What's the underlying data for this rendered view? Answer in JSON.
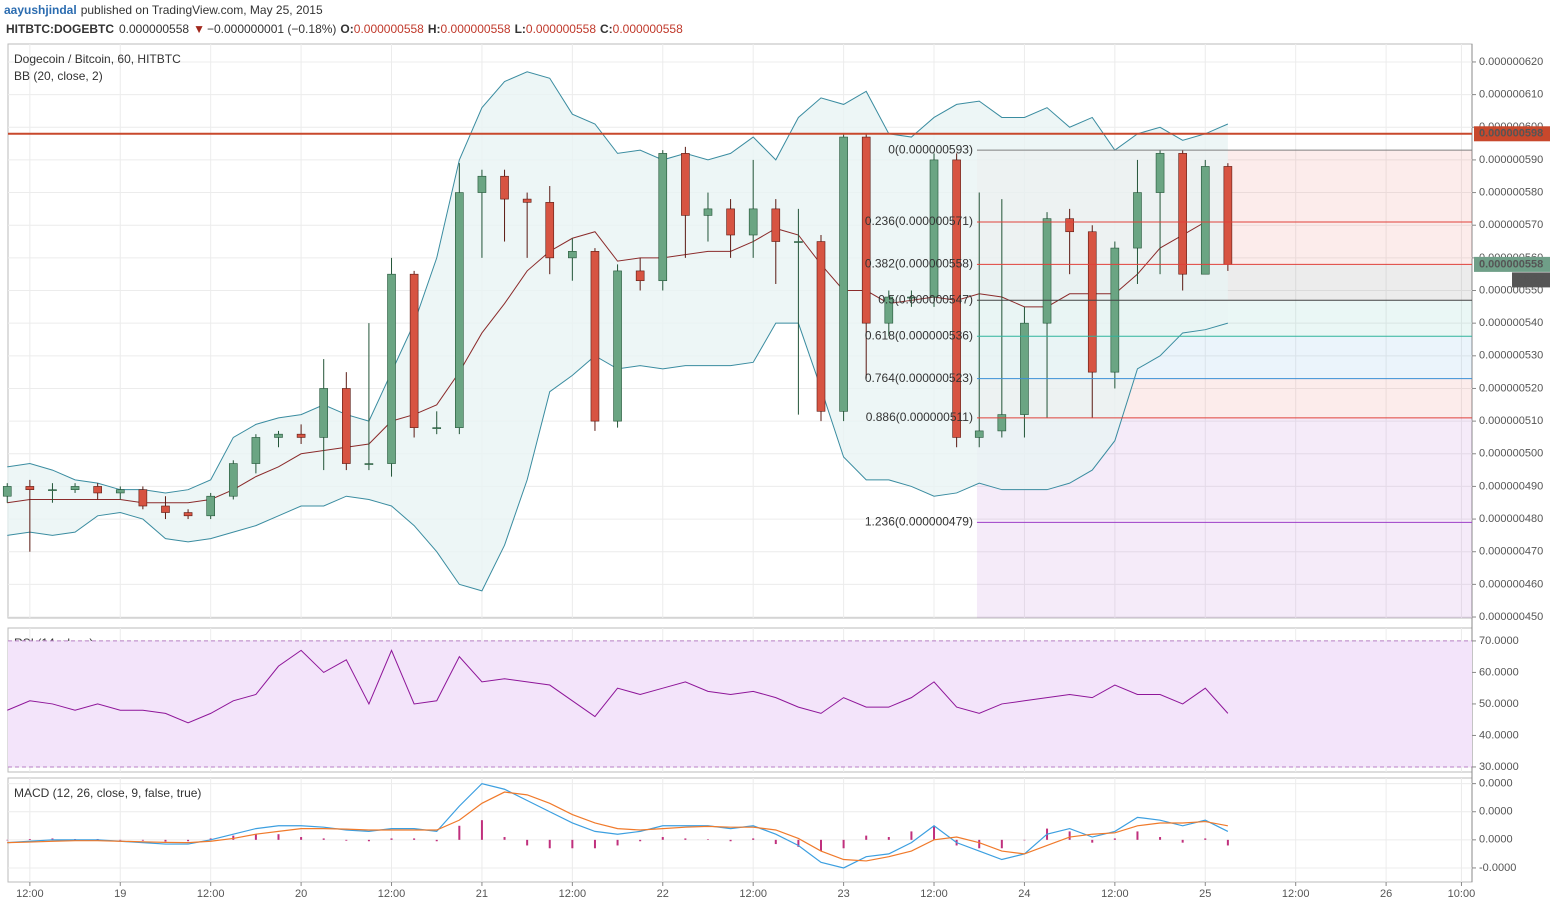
{
  "header": {
    "author": "aayushjindal",
    "published": "published on TradingView.com, May 25, 2015",
    "symbol": "HITBTC:DOGEBTC",
    "last": "0.000000558",
    "arrow": "▼",
    "change": "−0.000000001 (−0.18%)",
    "ohlc": [
      {
        "key": "O:",
        "value": "0.000000558"
      },
      {
        "key": "H:",
        "value": "0.000000558"
      },
      {
        "key": "L:",
        "value": "0.000000558"
      },
      {
        "key": "C:",
        "value": "0.000000558"
      }
    ]
  },
  "chart_data": [
    {
      "type": "candlestick",
      "title": "Dogecoin / Bitcoin, 60, HITBTC",
      "x": [
        9,
        12,
        15,
        18,
        21,
        24,
        27,
        30,
        33,
        36,
        39,
        42,
        45,
        48,
        51,
        54,
        57,
        60,
        63,
        66,
        69,
        72,
        75,
        78,
        81,
        84,
        87,
        90,
        93,
        96,
        99,
        102,
        105,
        108,
        111,
        114,
        117,
        120,
        123,
        126,
        129,
        132,
        135,
        138,
        141,
        144,
        147,
        150,
        153,
        156,
        159,
        162,
        165,
        168,
        171
      ],
      "open": [
        4.87e-07,
        4.9e-07,
        4.89e-07,
        4.89e-07,
        4.9e-07,
        4.88e-07,
        4.89e-07,
        4.84e-07,
        4.82e-07,
        4.81e-07,
        4.87e-07,
        4.97e-07,
        5.05e-07,
        5.06e-07,
        5.05e-07,
        5.2e-07,
        4.97e-07,
        4.97e-07,
        5.55e-07,
        5.08e-07,
        5.08e-07,
        5.8e-07,
        5.85e-07,
        5.78e-07,
        5.77e-07,
        5.6e-07,
        5.62e-07,
        5.1e-07,
        5.56e-07,
        5.53e-07,
        5.92e-07,
        5.73e-07,
        5.75e-07,
        5.67e-07,
        5.75e-07,
        5.65e-07,
        5.65e-07,
        5.13e-07,
        5.97e-07,
        5.4e-07,
        5.48e-07,
        5.48e-07,
        5.9e-07,
        5.05e-07,
        5.07e-07,
        5.12e-07,
        5.4e-07,
        5.72e-07,
        5.68e-07,
        5.25e-07,
        5.63e-07,
        5.8e-07,
        5.92e-07,
        5.55e-07,
        5.88e-07
      ],
      "high": [
        4.91e-07,
        4.92e-07,
        4.91e-07,
        4.91e-07,
        4.91e-07,
        4.9e-07,
        4.9e-07,
        4.87e-07,
        4.83e-07,
        4.88e-07,
        4.98e-07,
        5.06e-07,
        5.07e-07,
        5.09e-07,
        5.29e-07,
        5.25e-07,
        5.4e-07,
        5.6e-07,
        5.56e-07,
        5.13e-07,
        5.89e-07,
        5.87e-07,
        5.87e-07,
        5.8e-07,
        5.82e-07,
        5.66e-07,
        5.63e-07,
        5.58e-07,
        5.6e-07,
        5.93e-07,
        5.94e-07,
        5.8e-07,
        5.78e-07,
        5.9e-07,
        5.78e-07,
        5.75e-07,
        5.67e-07,
        5.98e-07,
        5.98e-07,
        5.5e-07,
        5.5e-07,
        5.92e-07,
        5.92e-07,
        5.8e-07,
        5.78e-07,
        5.45e-07,
        5.74e-07,
        5.75e-07,
        5.7e-07,
        5.65e-07,
        5.9e-07,
        5.93e-07,
        5.93e-07,
        5.9e-07,
        5.89e-07
      ],
      "low": [
        4.85e-07,
        4.7e-07,
        4.85e-07,
        4.88e-07,
        4.86e-07,
        4.86e-07,
        4.83e-07,
        4.8e-07,
        4.8e-07,
        4.8e-07,
        4.86e-07,
        4.94e-07,
        5.02e-07,
        5.03e-07,
        4.95e-07,
        4.95e-07,
        4.95e-07,
        4.93e-07,
        5.05e-07,
        5.06e-07,
        5.06e-07,
        5.6e-07,
        5.65e-07,
        5.6e-07,
        5.55e-07,
        5.53e-07,
        5.07e-07,
        5.08e-07,
        5.5e-07,
        5.5e-07,
        5.6e-07,
        5.65e-07,
        5.6e-07,
        5.6e-07,
        5.52e-07,
        5.12e-07,
        5.1e-07,
        5.1e-07,
        5.23e-07,
        5.36e-07,
        5.45e-07,
        5.45e-07,
        5.02e-07,
        5.02e-07,
        5.05e-07,
        5.05e-07,
        5.11e-07,
        5.55e-07,
        5.11e-07,
        5.2e-07,
        5.52e-07,
        5.55e-07,
        5.5e-07,
        5.55e-07,
        5.56e-07
      ],
      "close": [
        4.9e-07,
        4.89e-07,
        4.89e-07,
        4.9e-07,
        4.88e-07,
        4.89e-07,
        4.84e-07,
        4.82e-07,
        4.81e-07,
        4.87e-07,
        4.97e-07,
        5.05e-07,
        5.06e-07,
        5.05e-07,
        5.2e-07,
        4.97e-07,
        4.97e-07,
        5.55e-07,
        5.08e-07,
        5.08e-07,
        5.8e-07,
        5.85e-07,
        5.78e-07,
        5.77e-07,
        5.6e-07,
        5.62e-07,
        5.1e-07,
        5.56e-07,
        5.53e-07,
        5.92e-07,
        5.73e-07,
        5.75e-07,
        5.67e-07,
        5.75e-07,
        5.65e-07,
        5.65e-07,
        5.13e-07,
        5.97e-07,
        5.4e-07,
        5.48e-07,
        5.48e-07,
        5.9e-07,
        5.05e-07,
        5.07e-07,
        5.12e-07,
        5.4e-07,
        5.72e-07,
        5.68e-07,
        5.25e-07,
        5.63e-07,
        5.8e-07,
        5.92e-07,
        5.55e-07,
        5.88e-07,
        5.58e-07
      ],
      "up_color": "#6ba583",
      "up_border": "#225437",
      "down_color": "#d75442",
      "down_border": "#5b1a13",
      "xlim": [
        9.1,
        203.4
      ],
      "xticks": [
        {
          "value": 12,
          "label": "12:00"
        },
        {
          "value": 24,
          "label": "19"
        },
        {
          "value": 36,
          "label": "12:00"
        },
        {
          "value": 48,
          "label": "20"
        },
        {
          "value": 60,
          "label": "12:00"
        },
        {
          "value": 72,
          "label": "21"
        },
        {
          "value": 84,
          "label": "12:00"
        },
        {
          "value": 96,
          "label": "22"
        },
        {
          "value": 108,
          "label": "12:00"
        },
        {
          "value": 120,
          "label": "23"
        },
        {
          "value": 132,
          "label": "12:00"
        },
        {
          "value": 144,
          "label": "24"
        },
        {
          "value": 156,
          "label": "12:00"
        },
        {
          "value": 168,
          "label": "25"
        },
        {
          "value": 180,
          "label": "12:00"
        },
        {
          "value": 192,
          "label": "26"
        },
        {
          "value": 202,
          "label": "10:00"
        }
      ],
      "ylim": [
        4.497e-07,
        6.255e-07
      ],
      "yticks": [
        {
          "value": 4.5e-07,
          "label": "0.000000450"
        },
        {
          "value": 4.6e-07,
          "label": "0.000000460"
        },
        {
          "value": 4.7e-07,
          "label": "0.000000470"
        },
        {
          "value": 4.8e-07,
          "label": "0.000000480"
        },
        {
          "value": 4.9e-07,
          "label": "0.000000490"
        },
        {
          "value": 5e-07,
          "label": "0.000000500"
        },
        {
          "value": 5.1e-07,
          "label": "0.000000510"
        },
        {
          "value": 5.2e-07,
          "label": "0.000000520"
        },
        {
          "value": 5.3e-07,
          "label": "0.000000530"
        },
        {
          "value": 5.4e-07,
          "label": "0.000000540"
        },
        {
          "value": 5.5e-07,
          "label": "0.000000550"
        },
        {
          "value": 5.6e-07,
          "label": "0.000000560"
        },
        {
          "value": 5.7e-07,
          "label": "0.000000570"
        },
        {
          "value": 5.8e-07,
          "label": "0.000000580"
        },
        {
          "value": 5.9e-07,
          "label": "0.000000590"
        },
        {
          "value": 6e-07,
          "label": "0.000000600"
        },
        {
          "value": 6.1e-07,
          "label": "0.000000610"
        },
        {
          "value": 6.2e-07,
          "label": "0.000000620"
        }
      ],
      "grid": true,
      "bollinger": {
        "name": "BB (20, close, 2)",
        "color": "#3a8ca0",
        "basis_color": "#8b2b2b",
        "fill": "#e8f4f4",
        "upper": [
          4.96e-07,
          4.97e-07,
          4.95e-07,
          4.92e-07,
          4.91e-07,
          4.89e-07,
          4.89e-07,
          4.88e-07,
          4.89e-07,
          4.92e-07,
          5.05e-07,
          5.09e-07,
          5.11e-07,
          5.12e-07,
          5.15e-07,
          5.12e-07,
          5.1e-07,
          5.25e-07,
          5.4e-07,
          5.6e-07,
          5.9e-07,
          6.06e-07,
          6.14e-07,
          6.17e-07,
          6.15e-07,
          6.04e-07,
          6.01e-07,
          5.92e-07,
          5.93e-07,
          5.9e-07,
          5.92e-07,
          5.9e-07,
          5.92e-07,
          5.97e-07,
          5.9e-07,
          6.03e-07,
          6.09e-07,
          6.07e-07,
          6.11e-07,
          5.98e-07,
          5.97e-07,
          6.03e-07,
          6.07e-07,
          6.08e-07,
          6.03e-07,
          6.03e-07,
          6.06e-07,
          6e-07,
          6.03e-07,
          5.93e-07,
          5.98e-07,
          6e-07,
          5.96e-07,
          5.98e-07,
          6.01e-07
        ],
        "basis": [
          4.85e-07,
          4.86e-07,
          4.86e-07,
          4.86e-07,
          4.86e-07,
          4.86e-07,
          4.85e-07,
          4.85e-07,
          4.85e-07,
          4.86e-07,
          4.89e-07,
          4.93e-07,
          4.96e-07,
          5e-07,
          5.01e-07,
          5.02e-07,
          5.03e-07,
          5.1e-07,
          5.12e-07,
          5.15e-07,
          5.25e-07,
          5.37e-07,
          5.46e-07,
          5.56e-07,
          5.62e-07,
          5.66e-07,
          5.68e-07,
          5.59e-07,
          5.6e-07,
          5.6e-07,
          5.61e-07,
          5.62e-07,
          5.62e-07,
          5.65e-07,
          5.69e-07,
          5.67e-07,
          5.58e-07,
          5.5e-07,
          5.5e-07,
          5.46e-07,
          5.47e-07,
          5.48e-07,
          5.47e-07,
          5.49e-07,
          5.48e-07,
          5.45e-07,
          5.45e-07,
          5.49e-07,
          5.49e-07,
          5.49e-07,
          5.55e-07,
          5.63e-07,
          5.67e-07,
          5.71e-07,
          5.71e-07
        ],
        "lower": [
          4.75e-07,
          4.76e-07,
          4.75e-07,
          4.76e-07,
          4.81e-07,
          4.82e-07,
          4.8e-07,
          4.74e-07,
          4.73e-07,
          4.74e-07,
          4.76e-07,
          4.78e-07,
          4.81e-07,
          4.84e-07,
          4.84e-07,
          4.87e-07,
          4.86e-07,
          4.84e-07,
          4.78e-07,
          4.7e-07,
          4.6e-07,
          4.58e-07,
          4.72e-07,
          4.92e-07,
          5.19e-07,
          5.24e-07,
          5.3e-07,
          5.26e-07,
          5.27e-07,
          5.26e-07,
          5.27e-07,
          5.27e-07,
          5.27e-07,
          5.28e-07,
          5.4e-07,
          5.4e-07,
          5.2e-07,
          4.99e-07,
          4.92e-07,
          4.92e-07,
          4.9e-07,
          4.87e-07,
          4.88e-07,
          4.91e-07,
          4.89e-07,
          4.89e-07,
          4.89e-07,
          4.91e-07,
          4.95e-07,
          5.04e-07,
          5.26e-07,
          5.3e-07,
          5.37e-07,
          5.38e-07,
          5.4e-07
        ]
      },
      "price_line": {
        "value": 5.98e-07,
        "label": "0.000000598",
        "color": "#c8482c"
      },
      "last_price": {
        "value": 5.58e-07,
        "label": "0.000000558",
        "time": "06:27",
        "color": "#6f9f88",
        "time_color": "#555555"
      },
      "fibonacci": {
        "x_start": 137.7,
        "levels": [
          {
            "label": "0(0.000000593)",
            "value": 5.93e-07,
            "color": "#808080"
          },
          {
            "label": "0.236(0.000000571)",
            "value": 5.71e-07,
            "color": "#e0413a"
          },
          {
            "label": "0.382(0.000000558)",
            "value": 5.58e-07,
            "color": "#e0413a"
          },
          {
            "label": "0.5(0.000000547)",
            "value": 5.47e-07,
            "color": "#444444"
          },
          {
            "label": "0.618(0.000000536)",
            "value": 5.36e-07,
            "color": "#2fb39b"
          },
          {
            "label": "0.764(0.000000523)",
            "value": 5.23e-07,
            "color": "#3a8fd6"
          },
          {
            "label": "0.886(0.000000511)",
            "value": 5.11e-07,
            "color": "#e0413a"
          },
          {
            "label": "1.236(0.000000479)",
            "value": 4.79e-07,
            "color": "#9c3fc8"
          }
        ]
      }
    },
    {
      "type": "line",
      "title": "RSI (14, close)",
      "color": "#8e1599",
      "band": [
        30,
        70
      ],
      "band_color": "#f3e4fa",
      "values": [
        48,
        51,
        50,
        48,
        50,
        48,
        48,
        47,
        44,
        47,
        51,
        53,
        62,
        67,
        60,
        64,
        50,
        67,
        50,
        51,
        65,
        57,
        58,
        57,
        56,
        51,
        46,
        55,
        53,
        55,
        57,
        54,
        53,
        54,
        52,
        49,
        47,
        52,
        49,
        49,
        52,
        57,
        49,
        47,
        50,
        51,
        52,
        53,
        52,
        56,
        53,
        53,
        50,
        55,
        47
      ],
      "ylim": [
        28.4,
        74.1
      ],
      "yticks": [
        {
          "value": 30,
          "label": "30.0000"
        },
        {
          "value": 40,
          "label": "40.0000"
        },
        {
          "value": 50,
          "label": "50.0000"
        },
        {
          "value": 60,
          "label": "60.0000"
        },
        {
          "value": 70,
          "label": "70.0000"
        }
      ]
    },
    {
      "type": "macd",
      "title": "MACD (12, 26, close, 9, false, true)",
      "macd_color": "#3c9fe0",
      "signal_color": "#f07a2b",
      "histogram_color": "#c0307d",
      "macd": [
        -1e-09,
        -5e-10,
        0,
        0,
        0,
        -5e-10,
        -1e-09,
        -1.5e-09,
        -1.5e-09,
        0,
        2e-09,
        4e-09,
        5e-09,
        5e-09,
        4.5e-09,
        3.5e-09,
        3e-09,
        4e-09,
        4e-09,
        3e-09,
        1.2e-08,
        2e-08,
        1.8e-08,
        1.4e-08,
        1e-08,
        6e-09,
        3e-09,
        2e-09,
        3e-09,
        5e-09,
        5e-09,
        5e-09,
        4e-09,
        5e-09,
        2e-09,
        -2e-09,
        -8e-09,
        -1e-08,
        -6e-09,
        -5e-09,
        -1e-09,
        5e-09,
        -1e-09,
        -4e-09,
        -7e-09,
        -5e-09,
        2e-09,
        4e-09,
        1e-09,
        3e-09,
        8e-09,
        7e-09,
        5e-09,
        7e-09,
        3e-09
      ],
      "signal": [
        -1e-09,
        -8e-10,
        -5e-10,
        -3e-10,
        -3e-10,
        -5e-10,
        -7e-10,
        -9e-10,
        -1e-09,
        -5e-10,
        5e-10,
        2e-09,
        3e-09,
        4e-09,
        4e-09,
        3.8e-09,
        3.5e-09,
        3.5e-09,
        3.5e-09,
        3.5e-09,
        7e-09,
        1.3e-08,
        1.7e-08,
        1.6e-08,
        1.3e-08,
        9e-09,
        6e-09,
        4e-09,
        3.5e-09,
        4e-09,
        4.5e-09,
        4.8e-09,
        4.5e-09,
        4.5e-09,
        3.5e-09,
        5e-10,
        -4e-09,
        -7e-09,
        -7.5e-09,
        -6e-09,
        -4e-09,
        0,
        1e-09,
        -1e-09,
        -4e-09,
        -5e-09,
        -2e-09,
        1e-09,
        2e-09,
        2.5e-09,
        5e-09,
        6e-09,
        6e-09,
        6.5e-09,
        5e-09
      ],
      "histogram": [
        0,
        3e-10,
        5e-10,
        3e-10,
        3e-10,
        0,
        -3e-10,
        -6e-10,
        -5e-10,
        5e-10,
        1.5e-09,
        2e-09,
        2e-09,
        1e-09,
        5e-10,
        -3e-10,
        -5e-10,
        5e-10,
        5e-10,
        -5e-10,
        5e-09,
        7e-09,
        1e-09,
        -2e-09,
        -3e-09,
        -3e-09,
        -3e-09,
        -2e-09,
        -5e-10,
        1e-09,
        5e-10,
        2e-10,
        -5e-10,
        5e-10,
        -1.5e-09,
        -2.5e-09,
        -4e-09,
        -3e-09,
        1.5e-09,
        1e-09,
        3e-09,
        5e-09,
        -2e-09,
        -3e-09,
        -3e-09,
        0,
        4e-09,
        3e-09,
        -1e-09,
        5e-10,
        3e-09,
        1e-09,
        -1e-09,
        5e-10,
        -2e-09
      ],
      "ylim": [
        -1.5e-08,
        2.2e-08
      ],
      "yticks": [
        {
          "value": -1e-08,
          "label": "-0.0000"
        },
        {
          "value": 0,
          "label": "0.0000"
        },
        {
          "value": 1e-08,
          "label": "0.0000"
        },
        {
          "value": 2e-08,
          "label": "0.0000"
        }
      ]
    }
  ]
}
